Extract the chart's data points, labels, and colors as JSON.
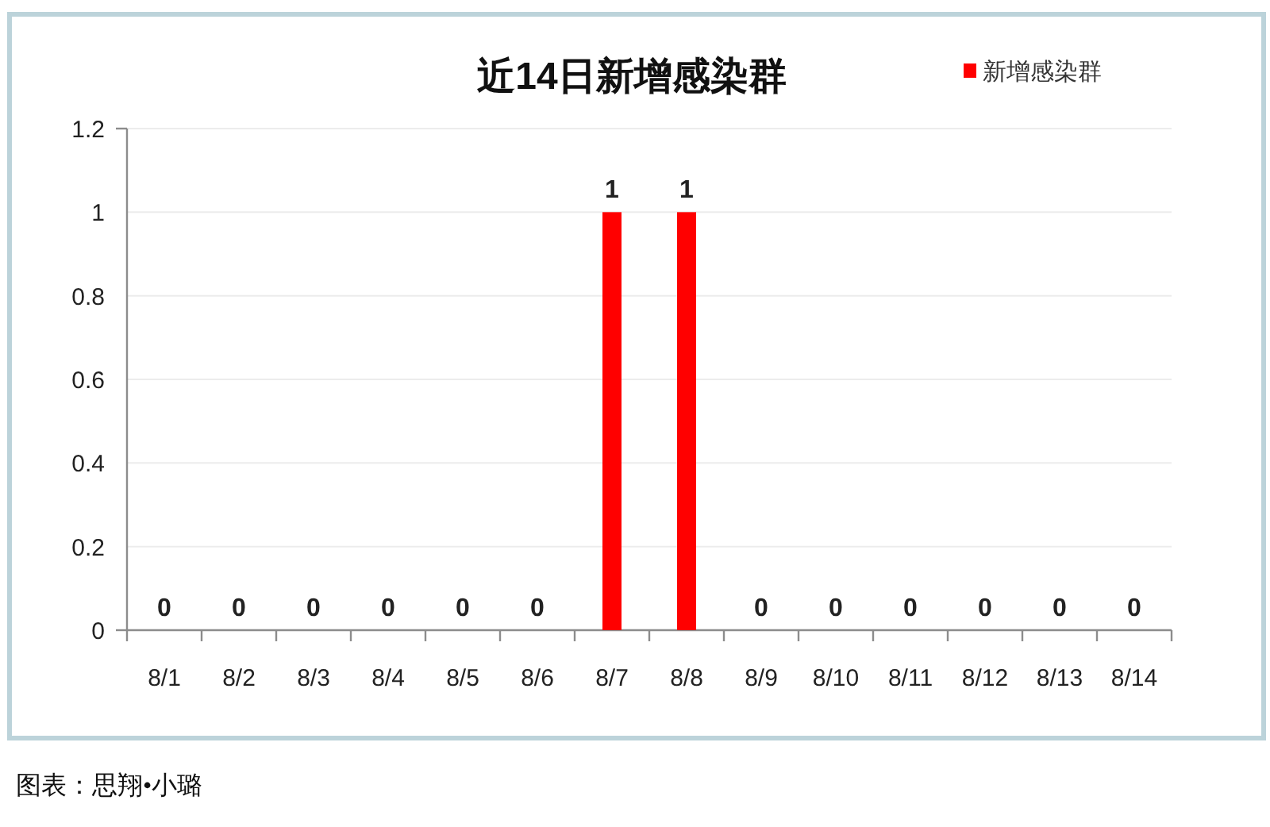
{
  "chart_data": {
    "type": "bar",
    "title": "近14日新增感染群",
    "categories": [
      "8/1",
      "8/2",
      "8/3",
      "8/4",
      "8/5",
      "8/6",
      "8/7",
      "8/8",
      "8/9",
      "8/10",
      "8/11",
      "8/12",
      "8/13",
      "8/14"
    ],
    "series": [
      {
        "name": "新增感染群",
        "color": "#ff0000",
        "values": [
          0,
          0,
          0,
          0,
          0,
          0,
          1,
          1,
          0,
          0,
          0,
          0,
          0,
          0
        ]
      }
    ],
    "ylim": [
      0,
      1.2
    ],
    "yticks": [
      0,
      0.2,
      0.4,
      0.6,
      0.8,
      1,
      1.2
    ],
    "grid": "y",
    "legend": "top right",
    "data_labels": true,
    "annotations": [
      "图表：思翔•小璐"
    ]
  }
}
